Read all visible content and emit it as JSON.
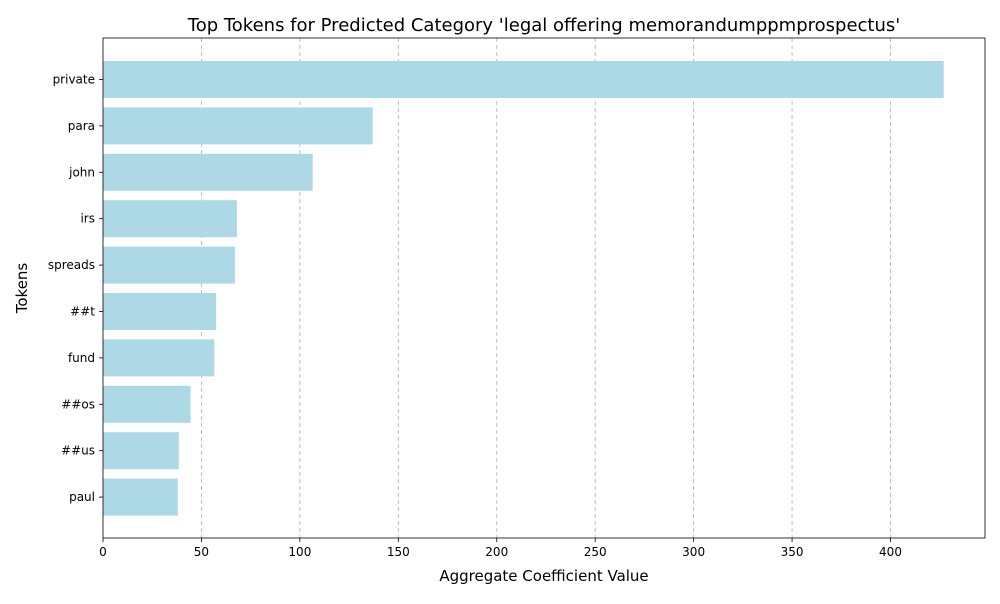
{
  "chart_data": {
    "type": "bar",
    "orientation": "horizontal",
    "title": "Top Tokens for Predicted Category 'legal offering memorandumppmprospectus'",
    "xlabel": "Aggregate Coefficient Value",
    "ylabel": "Tokens",
    "categories": [
      "private",
      "para",
      "john",
      "irs",
      "spreads",
      "##t",
      "fund",
      "##os",
      "##us",
      "paul"
    ],
    "values": [
      427,
      137,
      106.5,
      68,
      67,
      57.5,
      56.5,
      44.5,
      38.5,
      38
    ],
    "xlim": [
      0,
      448
    ],
    "xticks": [
      0,
      50,
      100,
      150,
      200,
      250,
      300,
      350,
      400
    ],
    "grid": "x-dashed",
    "bar_color": "#add8e6"
  }
}
